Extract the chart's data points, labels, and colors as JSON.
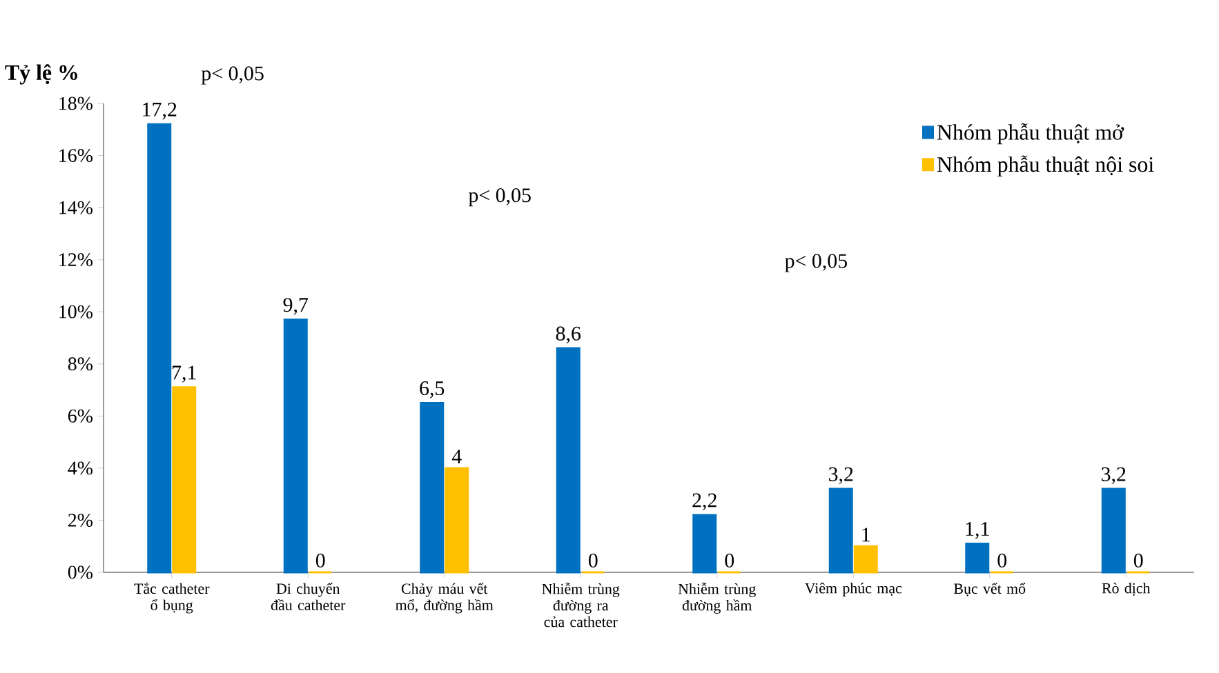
{
  "chart_data": {
    "type": "bar",
    "ylabel": "Tỷ lệ %",
    "categories": [
      "Tắc catheter ổ bụng",
      "Di chuyển đầu catheter",
      "Chảy máu vết mổ, đường hầm",
      "Nhiễm trùng đường ra của catheter",
      "Nhiễm trùng đường hầm",
      "Viêm phúc mạc",
      "Bục vết mổ",
      "Rò dịch"
    ],
    "series": [
      {
        "name": "Nhóm phẫu thuật mở",
        "color": "#0070c0",
        "values": [
          17.2,
          9.7,
          6.5,
          8.6,
          2.2,
          3.2,
          1.1,
          3.2
        ],
        "value_labels": [
          "17,2",
          "9,7",
          "6,5",
          "8,6",
          "2,2",
          "3,2",
          "1,1",
          "3,2"
        ]
      },
      {
        "name": "Nhóm phẫu thuật nội soi",
        "color": "#ffc000",
        "values": [
          7.1,
          0,
          4,
          0,
          0,
          1,
          0,
          0
        ],
        "value_labels": [
          "7,1",
          "0",
          "4",
          "0",
          "0",
          "1",
          "0",
          "0"
        ]
      }
    ],
    "ylim": [
      0,
      18
    ],
    "yticks": [
      {
        "value": 0,
        "label": "0%"
      },
      {
        "value": 2,
        "label": "2%"
      },
      {
        "value": 4,
        "label": "4%"
      },
      {
        "value": 6,
        "label": "6%"
      },
      {
        "value": 8,
        "label": "8%"
      },
      {
        "value": 10,
        "label": "10%"
      },
      {
        "value": 12,
        "label": "12%"
      },
      {
        "value": 14,
        "label": "14%"
      },
      {
        "value": 16,
        "label": "16%"
      },
      {
        "value": 18,
        "label": "18%"
      }
    ],
    "annotations": [
      "p< 0,05",
      "p< 0,05",
      "p< 0,05"
    ],
    "legend": "top right",
    "grid": false
  }
}
